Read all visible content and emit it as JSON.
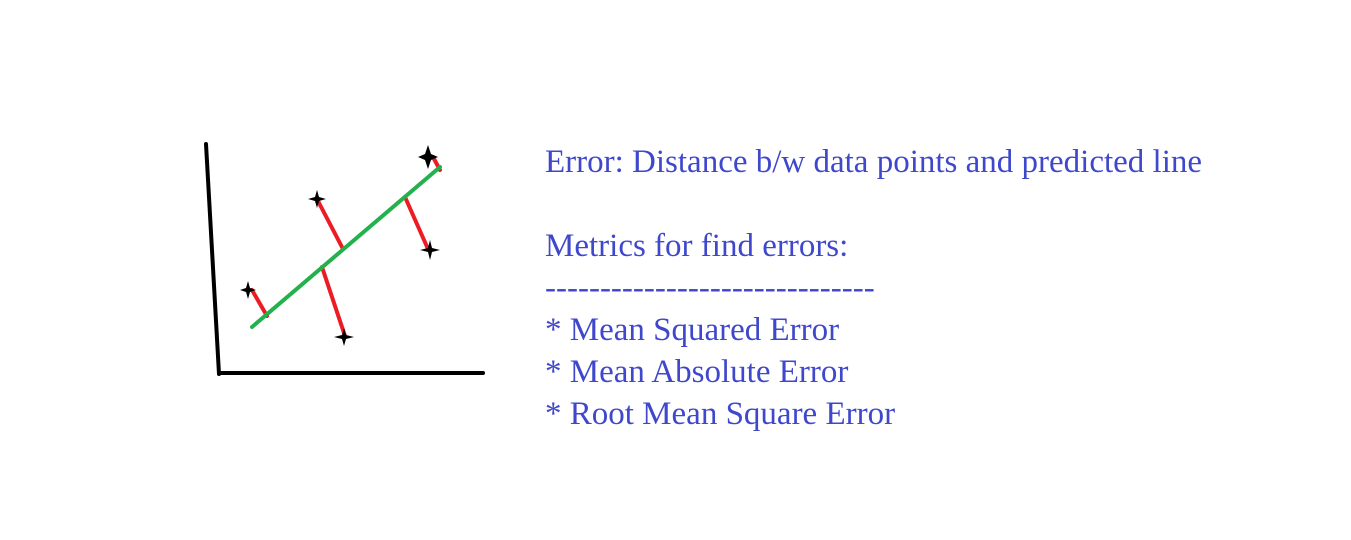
{
  "heading": "Error: Distance b/w data points and predicted line",
  "metrics_heading": "Metrics for find errors:",
  "rule": "------------------------------",
  "metrics": [
    "* Mean Squared Error",
    "* Mean Absolute Error",
    "* Root Mean Square Error"
  ],
  "colors": {
    "text": "#3f48cc",
    "axes": "#000000",
    "regression_line": "#22b14c",
    "error_segments": "#ed1c24",
    "points": "#000000"
  },
  "icons": {
    "data_point": "four-point-star"
  }
}
